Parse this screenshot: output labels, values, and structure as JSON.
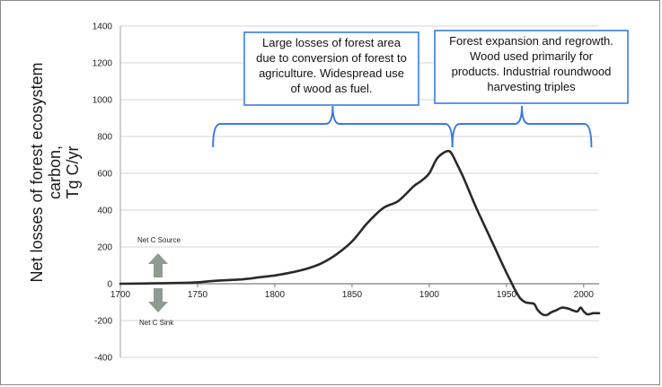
{
  "chart_data": {
    "type": "line",
    "title": "",
    "xlabel": "",
    "ylabel_lines": [
      "Net losses of forest ecosystem",
      "carbon,",
      "Tg C/yr"
    ],
    "xlim": [
      1700,
      2010
    ],
    "ylim": [
      -400,
      1400
    ],
    "x_ticks": [
      1700,
      1750,
      1800,
      1850,
      1900,
      1950,
      2000
    ],
    "y_ticks": [
      -400,
      -200,
      0,
      200,
      400,
      600,
      800,
      1000,
      1200,
      1400
    ],
    "grid": "horizontal",
    "series": [
      {
        "color": "#2a2a2e",
        "x": [
          1700,
          1720,
          1740,
          1750,
          1760,
          1770,
          1780,
          1790,
          1800,
          1810,
          1820,
          1830,
          1840,
          1850,
          1860,
          1870,
          1880,
          1890,
          1895,
          1900,
          1905,
          1910,
          1913,
          1915,
          1918,
          1922,
          1926,
          1930,
          1935,
          1940,
          1945,
          1950,
          1953,
          1956,
          1959,
          1962,
          1965,
          1968,
          1970,
          1973,
          1976,
          1979,
          1982,
          1986,
          1990,
          1993,
          1996,
          1998,
          2000,
          2002,
          2004,
          2006,
          2008,
          2010
        ],
        "y": [
          0,
          2,
          5,
          8,
          15,
          20,
          25,
          35,
          45,
          60,
          80,
          110,
          160,
          230,
          330,
          410,
          450,
          530,
          560,
          600,
          680,
          715,
          720,
          700,
          650,
          580,
          500,
          420,
          330,
          240,
          150,
          60,
          10,
          -40,
          -80,
          -100,
          -105,
          -110,
          -140,
          -165,
          -170,
          -155,
          -145,
          -130,
          -135,
          -145,
          -150,
          -130,
          -150,
          -165,
          -165,
          -160,
          -160,
          -160
        ]
      }
    ],
    "annotations": [
      {
        "lines": [
          "Large losses of forest area",
          "due to conversion of forest to",
          "agriculture. Widespread use",
          "of wood as fuel."
        ],
        "x_range": [
          1760,
          1915
        ]
      },
      {
        "lines": [
          "Forest expansion and regrowth.",
          "Wood used primarily for",
          "products. Industrial roundwood",
          "harvesting triples"
        ],
        "x_range": [
          1915,
          2005
        ]
      }
    ],
    "indicators": {
      "source_label": "Net C Source",
      "sink_label": "Net C Sink"
    },
    "colors": {
      "line": "#2a2a2e",
      "brace": "#3a7be0",
      "arrow": "#8e9c90",
      "grid": "#d4d4d4"
    }
  }
}
